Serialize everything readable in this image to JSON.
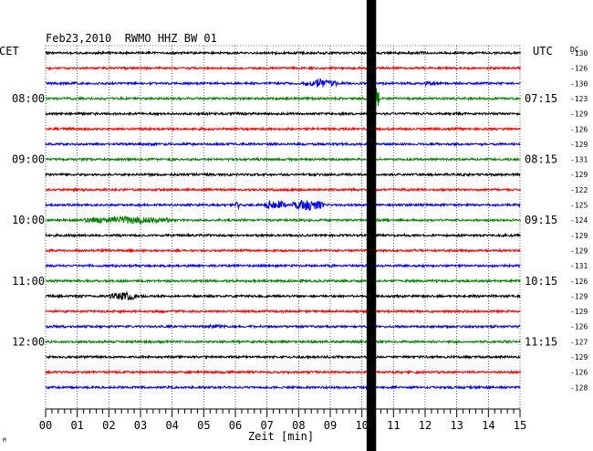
{
  "chart_data": {
    "type": "line",
    "title": "Feb23,2010  RWMO HHZ BW 01",
    "left_axis_label": "CET",
    "right_axis_label": "UTC",
    "dc_label": "DC",
    "xlabel": "Zeit [min]",
    "xlim": [
      0,
      15
    ],
    "x_ticks": [
      "00",
      "01",
      "02",
      "03",
      "04",
      "05",
      "06",
      "07",
      "08",
      "09",
      "10",
      "11",
      "12",
      "13",
      "14",
      "15"
    ],
    "grid": true,
    "trace_colors": [
      "#000000",
      "#ff0000",
      "#0000ff",
      "#008000"
    ],
    "left_time_labels": [
      {
        "row": 3,
        "label": "08:00"
      },
      {
        "row": 7,
        "label": "09:00"
      },
      {
        "row": 11,
        "label": "10:00"
      },
      {
        "row": 15,
        "label": "11:00"
      },
      {
        "row": 19,
        "label": "12:00"
      }
    ],
    "right_time_labels": [
      {
        "row": 3,
        "label": "07:15"
      },
      {
        "row": 7,
        "label": "08:15"
      },
      {
        "row": 11,
        "label": "09:15"
      },
      {
        "row": 15,
        "label": "10:15"
      },
      {
        "row": 19,
        "label": "11:15"
      }
    ],
    "dc_offsets": [
      "-130",
      "-126",
      "-130",
      "-123",
      "-129",
      "-126",
      "-129",
      "-131",
      "-129",
      "-122",
      "-125",
      "-124",
      "-129",
      "-129",
      "-131",
      "-126",
      "-129",
      "-129",
      "-126",
      "-127",
      "-129",
      "-126",
      "-128"
    ],
    "events": [
      {
        "row": 2,
        "start_min": 8.2,
        "end_min": 9.2,
        "amplitude": 0.55
      },
      {
        "row": 2,
        "start_min": 12.0,
        "end_min": 12.4,
        "amplitude": 0.25
      },
      {
        "row": 3,
        "start_min": 10.25,
        "end_min": 10.55,
        "amplitude": 1.6
      },
      {
        "row": 10,
        "start_min": 6.0,
        "end_min": 6.15,
        "amplitude": 0.5
      },
      {
        "row": 10,
        "start_min": 6.9,
        "end_min": 7.6,
        "amplitude": 0.55
      },
      {
        "row": 10,
        "start_min": 7.8,
        "end_min": 8.8,
        "amplitude": 0.7
      },
      {
        "row": 11,
        "start_min": 1.2,
        "end_min": 3.9,
        "amplitude": 0.35
      },
      {
        "row": 16,
        "start_min": 2.0,
        "end_min": 2.9,
        "amplitude": 0.45
      },
      {
        "row": 18,
        "start_min": 5.1,
        "end_min": 5.7,
        "amplitude": 0.2
      }
    ],
    "gap": {
      "start_min": 10.15,
      "end_min": 10.45
    },
    "corner_mark": "M"
  }
}
